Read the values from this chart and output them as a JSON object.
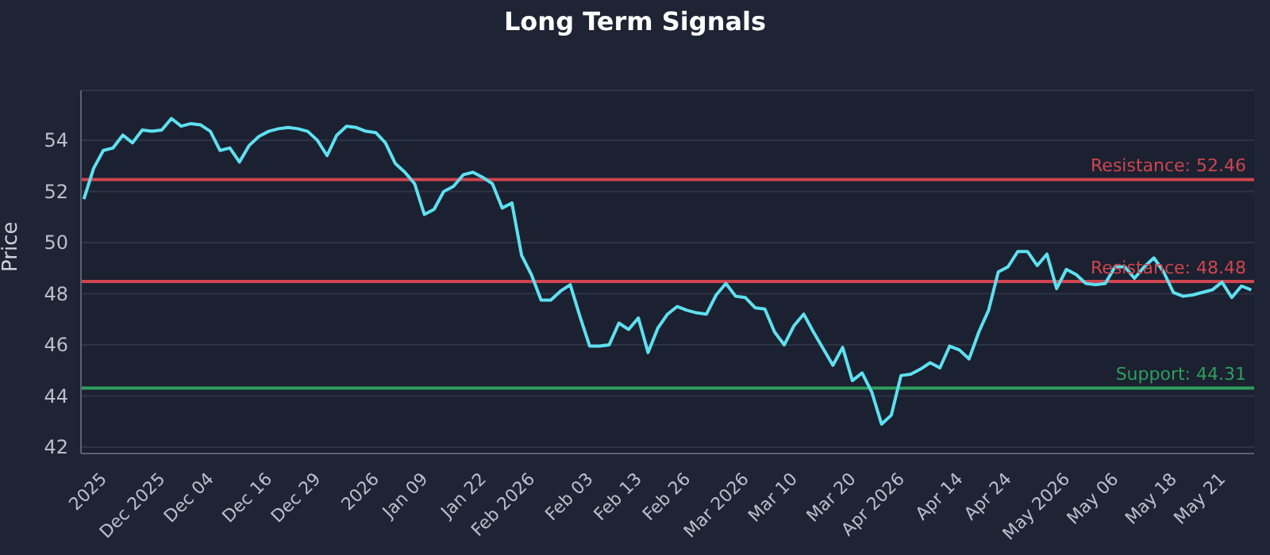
{
  "chart_data": {
    "type": "line",
    "title": "Long Term Signals",
    "ylabel": "Price",
    "categories": [
      null,
      null,
      "2025",
      null,
      null,
      null,
      null,
      null,
      "Dec 2025",
      null,
      null,
      null,
      null,
      "Dec 04",
      null,
      null,
      null,
      null,
      null,
      "Dec 16",
      null,
      null,
      null,
      null,
      "Dec 29",
      null,
      null,
      null,
      null,
      null,
      "2026",
      null,
      null,
      null,
      null,
      "Jan 09",
      null,
      null,
      null,
      null,
      null,
      "Jan 22",
      null,
      null,
      null,
      null,
      "Feb 2026",
      null,
      null,
      null,
      null,
      null,
      "Feb 03",
      null,
      null,
      null,
      null,
      "Feb 13",
      null,
      null,
      null,
      null,
      "Feb 26",
      null,
      null,
      null,
      null,
      null,
      "Mar 2026",
      null,
      null,
      null,
      null,
      "Mar 10",
      null,
      null,
      null,
      null,
      null,
      "Mar 20",
      null,
      null,
      null,
      null,
      "Apr 2026",
      null,
      null,
      null,
      null,
      null,
      "Apr 14",
      null,
      null,
      null,
      null,
      "Apr 24",
      null,
      null,
      null,
      null,
      null,
      "May 2026",
      null,
      null,
      null,
      null,
      "May 06",
      null,
      null,
      null,
      null,
      null,
      "May 18",
      null,
      null,
      null,
      null,
      "May 21",
      null,
      null,
      null
    ],
    "series": [
      {
        "color": "#5ee0f0",
        "values": [
          51.7,
          52.9,
          53.6,
          53.7,
          54.2,
          53.9,
          54.4,
          54.35,
          54.4,
          54.85,
          54.55,
          54.65,
          54.6,
          54.35,
          53.6,
          53.7,
          53.15,
          53.8,
          54.15,
          54.35,
          54.45,
          54.5,
          54.45,
          54.35,
          54.0,
          53.4,
          54.2,
          54.55,
          54.5,
          54.35,
          54.3,
          53.9,
          53.1,
          52.75,
          52.3,
          51.1,
          51.3,
          52.0,
          52.2,
          52.65,
          52.75,
          52.55,
          52.3,
          51.35,
          51.55,
          49.5,
          48.75,
          47.75,
          47.75,
          48.1,
          48.35,
          47.1,
          45.95,
          45.95,
          46.0,
          46.85,
          46.6,
          47.05,
          45.7,
          46.65,
          47.2,
          47.5,
          47.35,
          47.25,
          47.2,
          47.95,
          48.4,
          47.9,
          47.85,
          47.45,
          47.4,
          46.5,
          46.0,
          46.75,
          47.2,
          46.5,
          45.85,
          45.2,
          45.9,
          44.6,
          44.9,
          44.15,
          42.9,
          43.25,
          44.8,
          44.85,
          45.05,
          45.3,
          45.1,
          45.95,
          45.8,
          45.45,
          46.5,
          47.35,
          48.85,
          49.05,
          49.65,
          49.65,
          49.1,
          49.55,
          48.2,
          48.95,
          48.75,
          48.4,
          48.35,
          48.4,
          49.05,
          49.05,
          48.6,
          49.05,
          49.4,
          48.85,
          48.05,
          47.9,
          47.95,
          48.05,
          48.15,
          48.45,
          47.85,
          48.3,
          48.15
        ]
      }
    ],
    "ylim": [
      41.75,
      55.95
    ],
    "yticks": [
      42,
      44,
      46,
      48,
      50,
      52,
      54
    ],
    "grid": "y",
    "marker": "none",
    "line_style": "solid",
    "ref_lines": [
      {
        "axis": "y",
        "value": 52.46,
        "label": "Resistance: 52.46",
        "color": "#d0454f"
      },
      {
        "axis": "y",
        "value": 48.48,
        "label": "Resistance: 48.48",
        "color": "#d0454f"
      },
      {
        "axis": "y",
        "value": 44.31,
        "label": "Support: 44.31",
        "color": "#2e9e5e"
      }
    ]
  }
}
